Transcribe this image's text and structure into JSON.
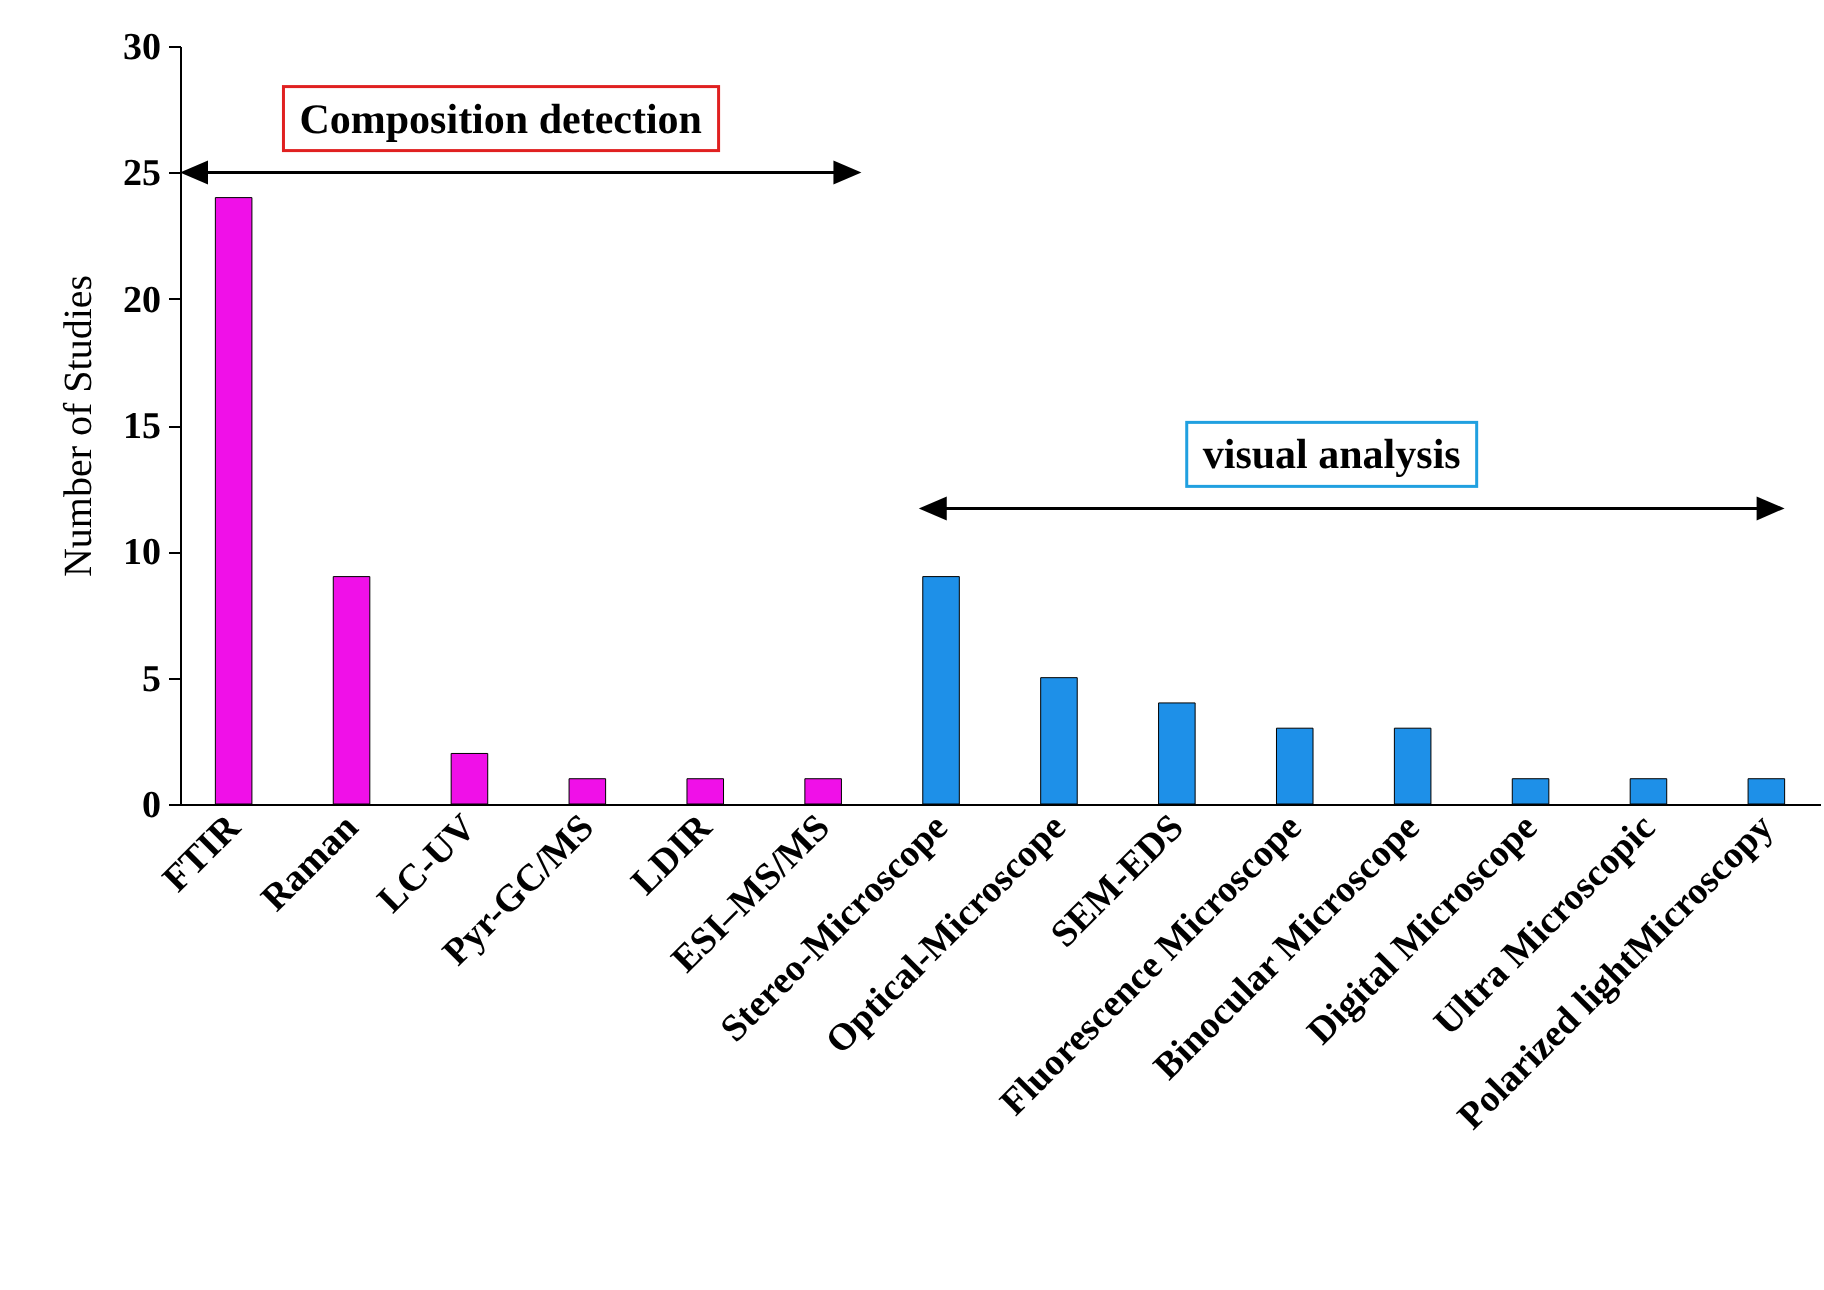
{
  "chart_data": {
    "type": "bar",
    "ylabel": "Number of Studies",
    "categories": [
      "FTIR",
      "Raman",
      "LC-UV",
      "Pyr-GC/MS",
      "LDIR",
      "ESI–MS/MS",
      "Stereo-Microscope",
      "Optical-Microscope",
      "SEM-EDS",
      "Fluorescence Microscope",
      "Binocular Microscope",
      "Digital Microscope",
      "Ultra Microscopic",
      "Polarized lightMicroscopy"
    ],
    "values": [
      24,
      9,
      2,
      1,
      1,
      1,
      9,
      5,
      4,
      3,
      3,
      1,
      1,
      1
    ],
    "colors": [
      "#f010e8",
      "#f010e8",
      "#f010e8",
      "#f010e8",
      "#f010e8",
      "#f010e8",
      "#1e90e8",
      "#1e90e8",
      "#1e90e8",
      "#1e90e8",
      "#1e90e8",
      "#1e90e8",
      "#1e90e8",
      "#1e90e8"
    ],
    "ylim": [
      0,
      30
    ],
    "yticks": [
      0,
      5,
      10,
      15,
      20,
      25,
      30
    ],
    "grid": false,
    "legend": false,
    "annotations": [
      "Composition detection",
      "visual analysis"
    ]
  }
}
